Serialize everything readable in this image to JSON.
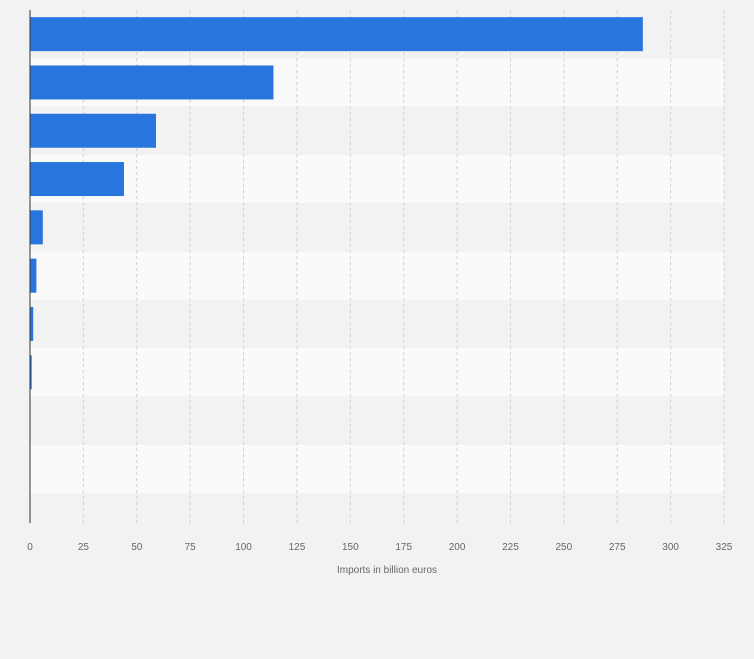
{
  "chart_data": {
    "type": "bar",
    "orientation": "horizontal",
    "title": "",
    "xlabel": "Imports in billion euros",
    "ylabel": "",
    "categories": [
      "",
      "",
      "",
      "",
      "",
      "",
      "",
      "",
      "",
      ""
    ],
    "values": [
      287,
      114,
      59,
      44,
      6,
      3,
      1.5,
      0.8,
      0,
      0
    ],
    "xlim": [
      0,
      325
    ],
    "x_ticks": [
      0,
      25,
      50,
      75,
      100,
      125,
      150,
      175,
      200,
      225,
      250,
      275,
      300,
      325
    ],
    "x_tick_labels": [
      "0",
      "25",
      "50",
      "75",
      "100",
      "125",
      "150",
      "175",
      "200",
      "225",
      "250",
      "275",
      "300",
      "325"
    ],
    "grid": true,
    "legend": "none",
    "bar_color": "#2876dd",
    "row_colors": [
      "#f2f2f2",
      "#fafafa"
    ]
  }
}
